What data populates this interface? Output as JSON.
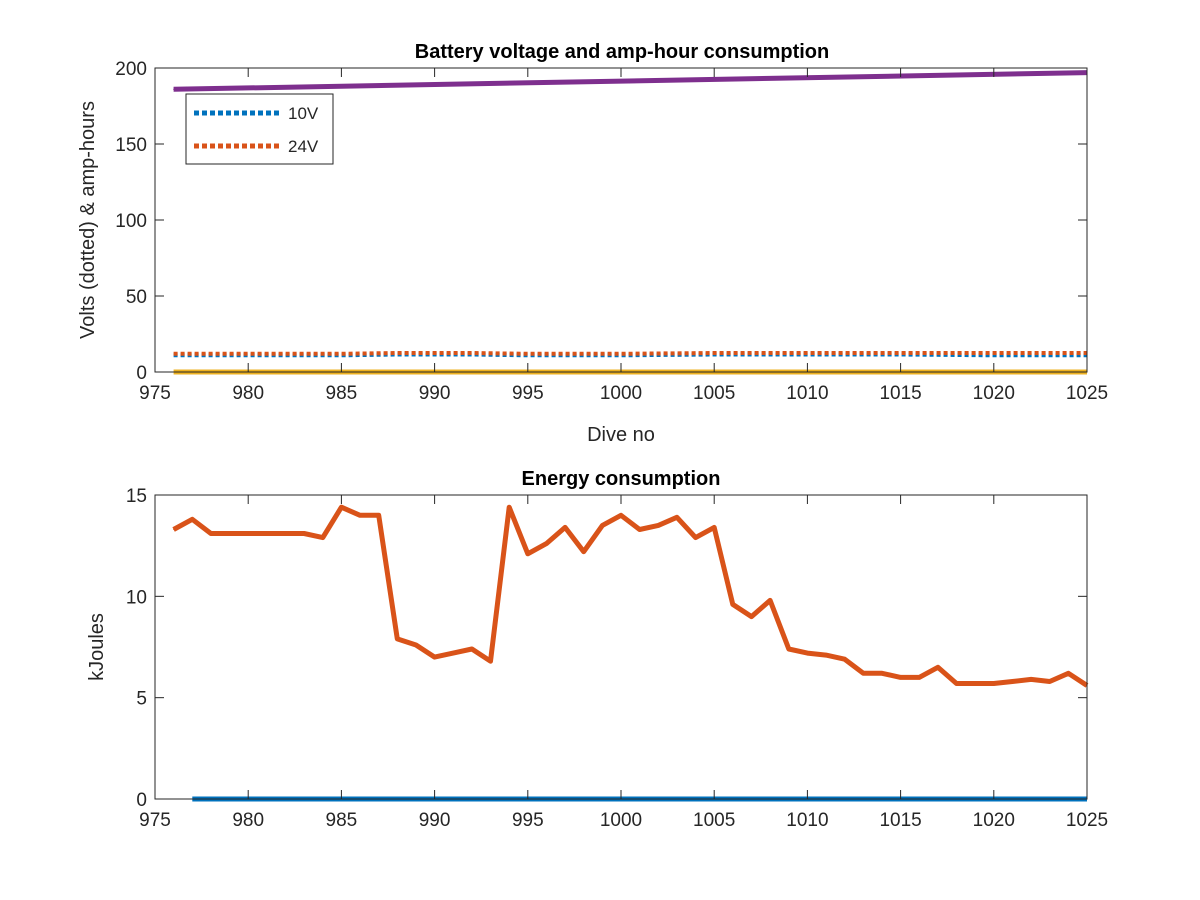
{
  "chart_data": [
    {
      "type": "line",
      "title": "Battery voltage and amp-hour consumption",
      "xlabel": "Dive no",
      "ylabel": "Volts (dotted) & amp-hours",
      "xlim": [
        975,
        1025
      ],
      "ylim": [
        0,
        200
      ],
      "xticks": [
        975,
        980,
        985,
        990,
        995,
        1000,
        1005,
        1010,
        1015,
        1020,
        1025
      ],
      "yticks": [
        0,
        50,
        100,
        150,
        200
      ],
      "grid": false,
      "legend_position": "top-left",
      "series": [
        {
          "name": "10V",
          "style": "dotted",
          "color": "#0072BD",
          "x": [
            976,
            980,
            985,
            988,
            992,
            995,
            1000,
            1005,
            1010,
            1015,
            1020,
            1025
          ],
          "y": [
            11,
            11,
            11,
            11.5,
            11.5,
            11,
            11,
            11.5,
            11.5,
            11.5,
            11,
            11
          ]
        },
        {
          "name": "24V",
          "style": "dotted",
          "color": "#D95319",
          "x": [
            976,
            980,
            985,
            988,
            992,
            995,
            1000,
            1005,
            1010,
            1015,
            1020,
            1025
          ],
          "y": [
            12,
            12,
            12,
            12.5,
            12.5,
            12,
            12,
            12.5,
            12.5,
            12.5,
            12.5,
            12.5
          ]
        },
        {
          "style": "solid",
          "color": "#7E2F8E",
          "x": [
            976,
            1025
          ],
          "y": [
            186,
            197
          ]
        },
        {
          "style": "solid",
          "color": "#EDB120",
          "x": [
            976,
            1025
          ],
          "y": [
            0,
            0
          ]
        }
      ]
    },
    {
      "type": "line",
      "title": "Energy consumption",
      "xlabel": "",
      "ylabel": "kJoules",
      "xlim": [
        975,
        1025
      ],
      "ylim": [
        0,
        15
      ],
      "xticks": [
        975,
        980,
        985,
        990,
        995,
        1000,
        1005,
        1010,
        1015,
        1020,
        1025
      ],
      "yticks": [
        0,
        5,
        10,
        15
      ],
      "grid": false,
      "series": [
        {
          "style": "solid",
          "color": "#D95319",
          "x": [
            976,
            977,
            978,
            979,
            980,
            981,
            982,
            983,
            984,
            985,
            986,
            987,
            988,
            989,
            990,
            991,
            992,
            993,
            994,
            995,
            996,
            997,
            998,
            999,
            1000,
            1001,
            1002,
            1003,
            1004,
            1005,
            1006,
            1007,
            1008,
            1009,
            1010,
            1011,
            1012,
            1013,
            1014,
            1015,
            1016,
            1017,
            1018,
            1019,
            1020,
            1021,
            1022,
            1023,
            1024,
            1025
          ],
          "y": [
            13.3,
            13.8,
            13.1,
            13.1,
            13.1,
            13.1,
            13.1,
            13.1,
            12.9,
            14.4,
            14.0,
            14.0,
            7.9,
            7.6,
            7.0,
            7.2,
            7.4,
            6.8,
            14.4,
            12.1,
            12.6,
            13.4,
            12.2,
            13.5,
            14.0,
            13.3,
            13.5,
            13.9,
            12.9,
            13.4,
            9.6,
            9.0,
            9.8,
            7.4,
            7.2,
            7.1,
            6.9,
            6.2,
            6.2,
            6.0,
            6.0,
            6.5,
            5.7,
            5.7,
            5.7,
            5.8,
            5.9,
            5.8,
            6.2,
            5.6
          ]
        },
        {
          "style": "solid",
          "color": "#0072BD",
          "x": [
            977,
            1025
          ],
          "y": [
            0,
            0
          ]
        }
      ]
    }
  ]
}
